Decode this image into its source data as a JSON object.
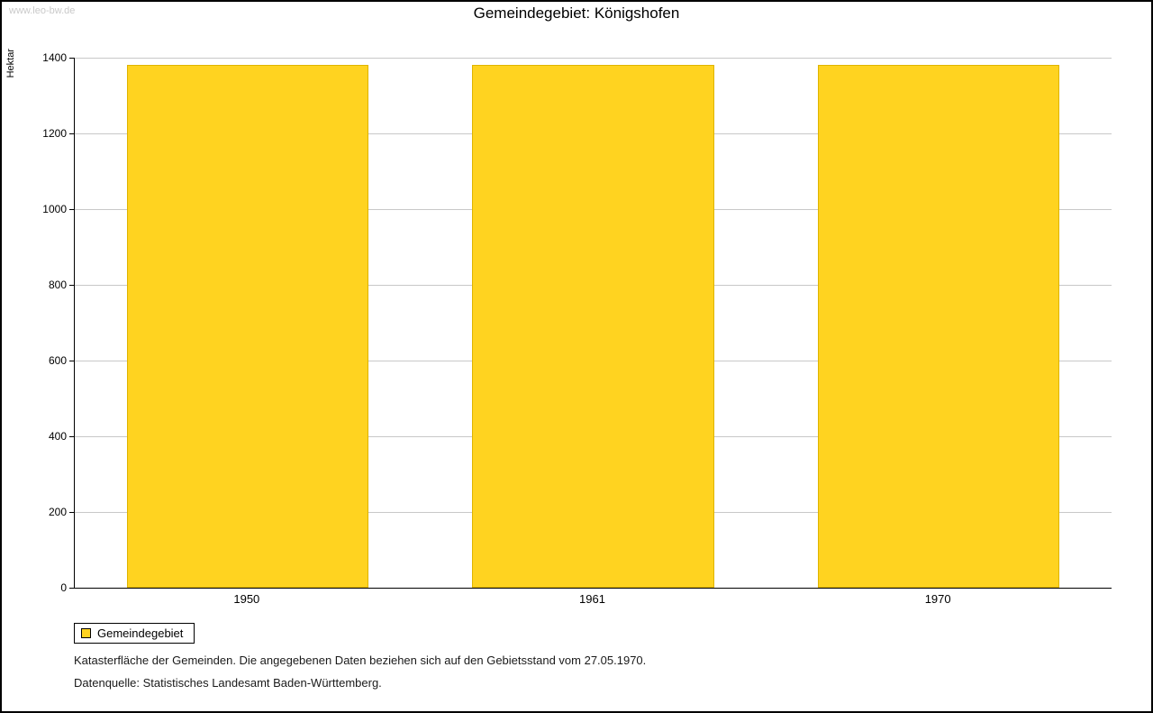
{
  "watermark": "www.leo-bw.de",
  "title": "Gemeindegebiet: Königshofen",
  "chart_data": {
    "type": "bar",
    "title": "Gemeindegebiet: Königshofen",
    "categories": [
      "1950",
      "1961",
      "1970"
    ],
    "series": [
      {
        "name": "Gemeindegebiet",
        "values": [
          1380,
          1380,
          1380
        ]
      }
    ],
    "xlabel": "",
    "ylabel": "Hektar",
    "ylim": [
      0,
      1400
    ],
    "ytick_interval": 200,
    "grid": true,
    "bar_color": "#FFD320",
    "bar_border_color": "#DFB400",
    "legend_position": "bottom-left"
  },
  "legend": {
    "items": [
      {
        "label": "Gemeindegebiet",
        "color": "#FFD320"
      }
    ]
  },
  "footnotes": [
    "Katasterfläche der Gemeinden. Die angegebenen Daten beziehen sich auf den Gebietsstand vom 27.05.1970.",
    "Datenquelle: Statistisches Landesamt Baden-Württemberg."
  ]
}
